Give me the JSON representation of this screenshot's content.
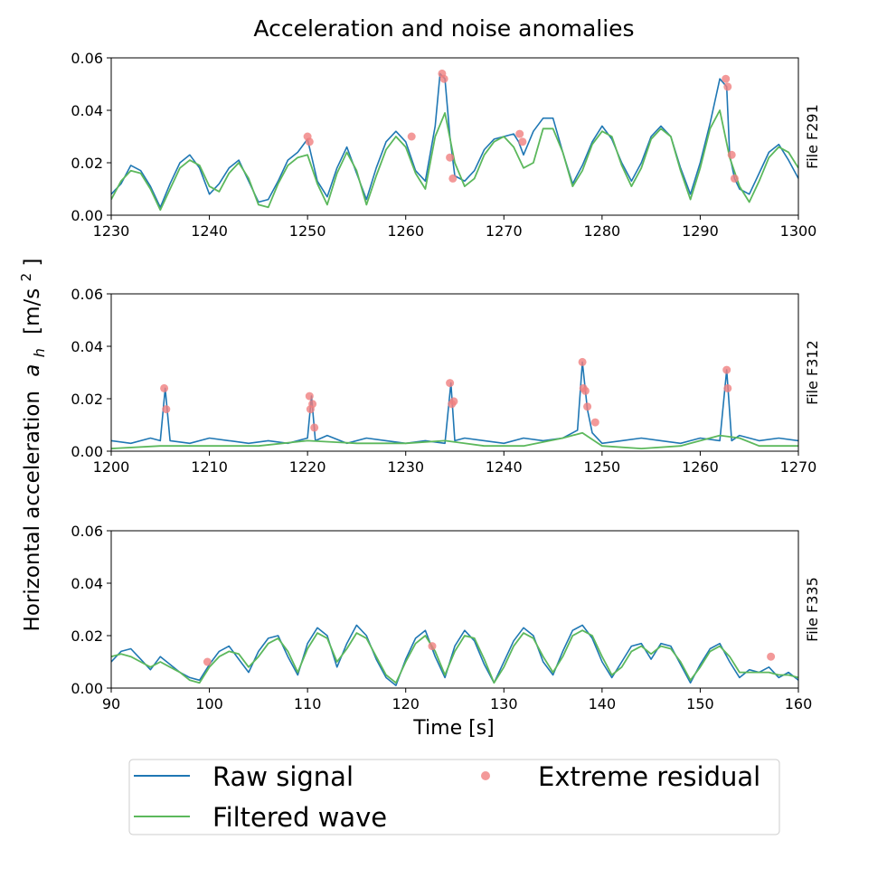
{
  "figure": {
    "title": "Acceleration and noise anomalies",
    "ylabel": "Horizontal acceleration",
    "ylabel_symbol": "a",
    "ylabel_subscript": "h",
    "ylabel_unit_open": "[m/s",
    "ylabel_unit_exp": "2",
    "ylabel_unit_close": "]",
    "xlabel": "Time [s]",
    "colors": {
      "raw": "#1f77b4",
      "filtered": "#5cb85c",
      "residual": "#f08080"
    }
  },
  "legend": {
    "placement": "bottom",
    "entries": [
      "Raw signal",
      "Filtered wave",
      "Extreme residual"
    ]
  },
  "chart_data": [
    {
      "type": "line",
      "panel_label": "File F291",
      "xlim": [
        1230,
        1300
      ],
      "ylim": [
        0,
        0.06
      ],
      "xticks": [
        1230,
        1240,
        1250,
        1260,
        1270,
        1280,
        1290,
        1300
      ],
      "yticks": [
        0.0,
        0.02,
        0.04,
        0.06
      ],
      "yticklabels": [
        "0.00",
        "0.02",
        "0.04",
        "0.06"
      ],
      "series": [
        {
          "name": "Filtered wave",
          "x": [
            1230,
            1231,
            1232,
            1233,
            1234,
            1235,
            1236,
            1237,
            1238,
            1239,
            1240,
            1241,
            1242,
            1243,
            1244,
            1245,
            1246,
            1247,
            1248,
            1249,
            1250,
            1251,
            1252,
            1253,
            1254,
            1255,
            1256,
            1257,
            1258,
            1259,
            1260,
            1261,
            1262,
            1263,
            1264,
            1265,
            1266,
            1267,
            1268,
            1269,
            1270,
            1271,
            1272,
            1273,
            1274,
            1275,
            1276,
            1277,
            1278,
            1279,
            1280,
            1281,
            1282,
            1283,
            1284,
            1285,
            1286,
            1287,
            1288,
            1289,
            1290,
            1291,
            1292,
            1293,
            1294,
            1295,
            1296,
            1297,
            1298,
            1299,
            1300
          ],
          "y": [
            0.006,
            0.013,
            0.017,
            0.016,
            0.01,
            0.002,
            0.01,
            0.018,
            0.021,
            0.019,
            0.011,
            0.009,
            0.016,
            0.02,
            0.014,
            0.004,
            0.003,
            0.012,
            0.019,
            0.022,
            0.023,
            0.012,
            0.004,
            0.016,
            0.024,
            0.017,
            0.004,
            0.015,
            0.025,
            0.03,
            0.026,
            0.016,
            0.01,
            0.03,
            0.039,
            0.02,
            0.011,
            0.014,
            0.023,
            0.028,
            0.03,
            0.026,
            0.018,
            0.02,
            0.033,
            0.033,
            0.024,
            0.011,
            0.017,
            0.027,
            0.032,
            0.03,
            0.019,
            0.011,
            0.018,
            0.029,
            0.033,
            0.03,
            0.017,
            0.006,
            0.018,
            0.033,
            0.04,
            0.022,
            0.011,
            0.005,
            0.013,
            0.022,
            0.026,
            0.024,
            0.018
          ]
        },
        {
          "name": "Raw signal",
          "x": [
            1230,
            1231,
            1232,
            1233,
            1234,
            1235,
            1236,
            1237,
            1238,
            1239,
            1240,
            1241,
            1242,
            1243,
            1244,
            1245,
            1246,
            1247,
            1248,
            1249,
            1250,
            1251,
            1252,
            1253,
            1254,
            1255,
            1256,
            1257,
            1258,
            1259,
            1260,
            1261,
            1262,
            1263,
            1263.5,
            1264,
            1264.5,
            1265,
            1266,
            1267,
            1268,
            1269,
            1270,
            1271,
            1271.5,
            1272,
            1273,
            1274,
            1275,
            1276,
            1277,
            1278,
            1279,
            1280,
            1281,
            1282,
            1283,
            1284,
            1285,
            1286,
            1287,
            1288,
            1289,
            1290,
            1291,
            1292,
            1292.7,
            1293,
            1293.5,
            1294,
            1295,
            1296,
            1297,
            1298,
            1299,
            1300
          ],
          "y": [
            0.008,
            0.012,
            0.019,
            0.017,
            0.011,
            0.003,
            0.012,
            0.02,
            0.023,
            0.018,
            0.008,
            0.012,
            0.018,
            0.021,
            0.013,
            0.005,
            0.006,
            0.013,
            0.021,
            0.024,
            0.029,
            0.013,
            0.007,
            0.018,
            0.026,
            0.016,
            0.006,
            0.018,
            0.028,
            0.032,
            0.028,
            0.017,
            0.013,
            0.034,
            0.054,
            0.052,
            0.03,
            0.015,
            0.013,
            0.017,
            0.025,
            0.029,
            0.03,
            0.031,
            0.028,
            0.023,
            0.032,
            0.037,
            0.037,
            0.024,
            0.012,
            0.019,
            0.028,
            0.034,
            0.029,
            0.02,
            0.013,
            0.02,
            0.03,
            0.034,
            0.03,
            0.018,
            0.008,
            0.02,
            0.035,
            0.052,
            0.049,
            0.023,
            0.014,
            0.01,
            0.008,
            0.016,
            0.024,
            0.027,
            0.021,
            0.014
          ]
        },
        {
          "name": "Extreme residual",
          "x": [
            1250.0,
            1250.2,
            1260.6,
            1263.7,
            1263.9,
            1264.5,
            1264.8,
            1271.6,
            1271.9,
            1292.6,
            1292.8,
            1293.2,
            1293.5
          ],
          "y": [
            0.03,
            0.028,
            0.03,
            0.054,
            0.052,
            0.022,
            0.014,
            0.031,
            0.028,
            0.052,
            0.049,
            0.023,
            0.014
          ]
        }
      ]
    },
    {
      "type": "line",
      "panel_label": "File F312",
      "xlim": [
        1200,
        1270
      ],
      "ylim": [
        0,
        0.06
      ],
      "xticks": [
        1200,
        1210,
        1220,
        1230,
        1240,
        1250,
        1260,
        1270
      ],
      "yticks": [
        0.0,
        0.02,
        0.04,
        0.06
      ],
      "yticklabels": [
        "0.00",
        "0.02",
        "0.04",
        "0.06"
      ],
      "series": [
        {
          "name": "Filtered wave",
          "x": [
            1200,
            1205,
            1210,
            1215,
            1220,
            1225,
            1230,
            1234,
            1238,
            1242,
            1246,
            1248,
            1250,
            1254,
            1258,
            1262,
            1264,
            1266,
            1270
          ],
          "y": [
            0.001,
            0.002,
            0.002,
            0.002,
            0.004,
            0.003,
            0.003,
            0.004,
            0.002,
            0.002,
            0.005,
            0.007,
            0.002,
            0.001,
            0.002,
            0.006,
            0.005,
            0.002,
            0.002
          ]
        },
        {
          "name": "Raw signal",
          "x": [
            1200,
            1202,
            1204,
            1205,
            1205.5,
            1206,
            1208,
            1210,
            1212,
            1214,
            1216,
            1218,
            1220,
            1220.4,
            1220.8,
            1222,
            1224,
            1226,
            1228,
            1230,
            1232,
            1234,
            1234.6,
            1235,
            1236,
            1238,
            1240,
            1242,
            1244,
            1246,
            1247.5,
            1248,
            1248.5,
            1249,
            1250,
            1252,
            1254,
            1256,
            1258,
            1260,
            1262,
            1262.7,
            1263.2,
            1264,
            1266,
            1268,
            1270
          ],
          "y": [
            0.004,
            0.003,
            0.005,
            0.004,
            0.024,
            0.004,
            0.003,
            0.005,
            0.004,
            0.003,
            0.004,
            0.003,
            0.005,
            0.021,
            0.004,
            0.006,
            0.003,
            0.005,
            0.004,
            0.003,
            0.004,
            0.003,
            0.026,
            0.004,
            0.005,
            0.004,
            0.003,
            0.005,
            0.004,
            0.005,
            0.008,
            0.034,
            0.016,
            0.007,
            0.003,
            0.004,
            0.005,
            0.004,
            0.003,
            0.005,
            0.004,
            0.031,
            0.004,
            0.006,
            0.004,
            0.005,
            0.004
          ]
        },
        {
          "name": "Extreme residual",
          "x": [
            1205.4,
            1205.6,
            1220.2,
            1220.3,
            1220.5,
            1220.7,
            1234.5,
            1234.7,
            1234.9,
            1248.0,
            1248.1,
            1248.3,
            1248.5,
            1249.3,
            1262.7,
            1262.8
          ],
          "y": [
            0.024,
            0.016,
            0.021,
            0.016,
            0.018,
            0.009,
            0.026,
            0.018,
            0.019,
            0.034,
            0.024,
            0.023,
            0.017,
            0.011,
            0.031,
            0.024
          ]
        }
      ]
    },
    {
      "type": "line",
      "panel_label": "File F335",
      "xlim": [
        90,
        160
      ],
      "ylim": [
        0,
        0.06
      ],
      "xticks": [
        90,
        100,
        110,
        120,
        130,
        140,
        150,
        160
      ],
      "yticks": [
        0.0,
        0.02,
        0.04,
        0.06
      ],
      "yticklabels": [
        "0.00",
        "0.02",
        "0.04",
        "0.06"
      ],
      "series": [
        {
          "name": "Filtered wave",
          "x": [
            90,
            91,
            92,
            93,
            94,
            95,
            96,
            97,
            98,
            99,
            100,
            101,
            102,
            103,
            104,
            105,
            106,
            107,
            108,
            109,
            110,
            111,
            112,
            113,
            114,
            115,
            116,
            117,
            118,
            119,
            120,
            121,
            122,
            123,
            124,
            125,
            126,
            127,
            128,
            129,
            130,
            131,
            132,
            133,
            134,
            135,
            136,
            137,
            138,
            139,
            140,
            141,
            142,
            143,
            144,
            145,
            146,
            147,
            148,
            149,
            150,
            151,
            152,
            153,
            154,
            155,
            156,
            157,
            158,
            159,
            160
          ],
          "y": [
            0.012,
            0.013,
            0.012,
            0.01,
            0.008,
            0.01,
            0.008,
            0.006,
            0.003,
            0.002,
            0.008,
            0.012,
            0.014,
            0.013,
            0.008,
            0.012,
            0.017,
            0.019,
            0.014,
            0.006,
            0.015,
            0.021,
            0.019,
            0.01,
            0.015,
            0.021,
            0.019,
            0.012,
            0.005,
            0.002,
            0.01,
            0.017,
            0.02,
            0.014,
            0.005,
            0.014,
            0.02,
            0.019,
            0.011,
            0.002,
            0.008,
            0.016,
            0.021,
            0.019,
            0.012,
            0.006,
            0.012,
            0.02,
            0.022,
            0.02,
            0.012,
            0.005,
            0.008,
            0.014,
            0.016,
            0.013,
            0.016,
            0.015,
            0.01,
            0.003,
            0.008,
            0.014,
            0.016,
            0.012,
            0.006,
            0.006,
            0.006,
            0.006,
            0.005,
            0.005,
            0.004
          ]
        },
        {
          "name": "Raw signal",
          "x": [
            90,
            91,
            92,
            93,
            94,
            95,
            96,
            97,
            98,
            99,
            100,
            101,
            102,
            103,
            104,
            105,
            106,
            107,
            108,
            109,
            110,
            111,
            112,
            113,
            114,
            115,
            116,
            117,
            118,
            119,
            120,
            121,
            122,
            123,
            124,
            125,
            126,
            127,
            128,
            129,
            130,
            131,
            132,
            133,
            134,
            135,
            136,
            137,
            138,
            139,
            140,
            141,
            142,
            143,
            144,
            145,
            146,
            147,
            148,
            149,
            150,
            151,
            152,
            153,
            154,
            155,
            156,
            157,
            158,
            159,
            160
          ],
          "y": [
            0.01,
            0.014,
            0.015,
            0.011,
            0.007,
            0.012,
            0.009,
            0.006,
            0.004,
            0.003,
            0.009,
            0.014,
            0.016,
            0.011,
            0.006,
            0.014,
            0.019,
            0.02,
            0.012,
            0.005,
            0.017,
            0.023,
            0.02,
            0.008,
            0.017,
            0.024,
            0.02,
            0.011,
            0.004,
            0.001,
            0.011,
            0.019,
            0.022,
            0.012,
            0.004,
            0.016,
            0.022,
            0.018,
            0.009,
            0.002,
            0.01,
            0.018,
            0.023,
            0.02,
            0.01,
            0.005,
            0.014,
            0.022,
            0.024,
            0.019,
            0.01,
            0.004,
            0.01,
            0.016,
            0.017,
            0.011,
            0.017,
            0.016,
            0.009,
            0.002,
            0.009,
            0.015,
            0.017,
            0.01,
            0.004,
            0.007,
            0.006,
            0.008,
            0.004,
            0.006,
            0.003
          ]
        },
        {
          "name": "Extreme residual",
          "x": [
            99.8,
            122.7,
            157.2
          ],
          "y": [
            0.01,
            0.016,
            0.012
          ]
        }
      ]
    }
  ]
}
